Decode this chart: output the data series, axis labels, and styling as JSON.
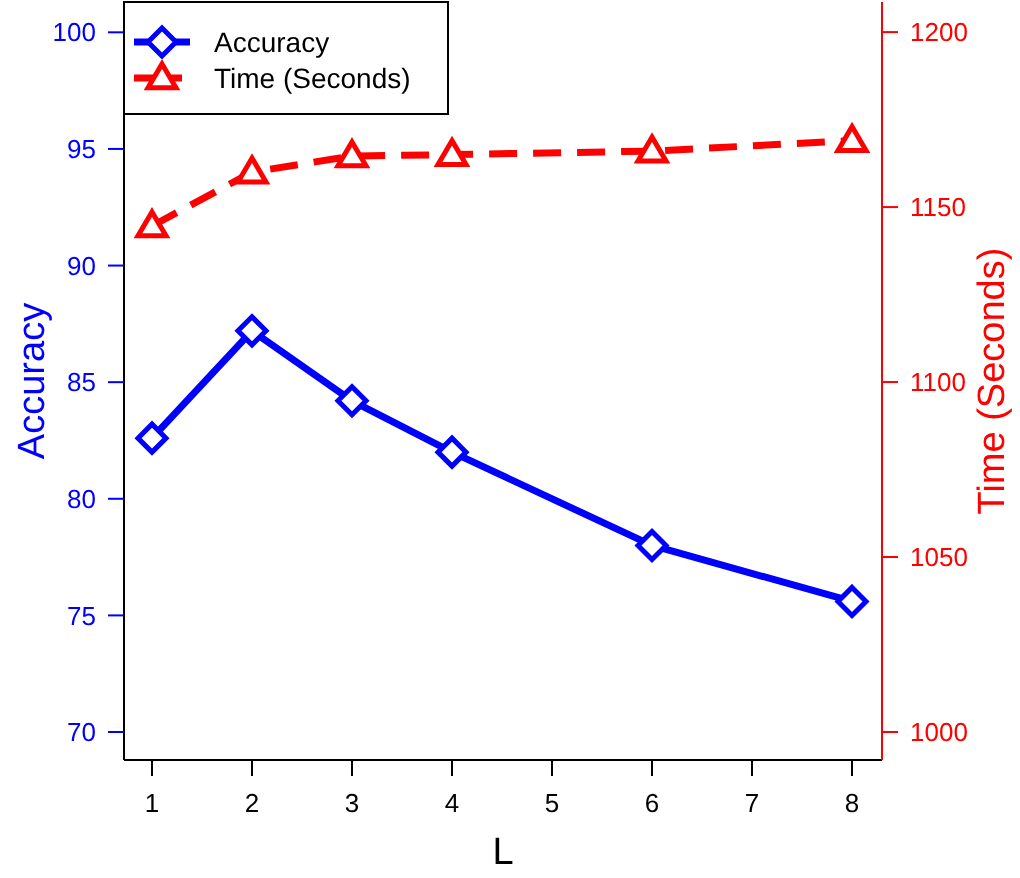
{
  "chart_data": {
    "type": "line",
    "xlabel": "L",
    "ylabel": "Accuracy",
    "y2label": "Time (Seconds)",
    "x": [
      1,
      2,
      3,
      4,
      6,
      8
    ],
    "xlim": [
      0.72,
      8.3
    ],
    "xticks": [
      1,
      2,
      3,
      4,
      5,
      6,
      7,
      8
    ],
    "ylim": [
      68.8,
      101.3
    ],
    "yticks": [
      70,
      75,
      80,
      85,
      90,
      95,
      100
    ],
    "y2lim": [
      992,
      1208.6
    ],
    "y2ticks": [
      1000,
      1050,
      1100,
      1150,
      1200
    ],
    "legend": "top left",
    "grid": false,
    "series": [
      {
        "name": "Accuracy",
        "color": "#0000ff",
        "values": [
          82.6,
          87.2,
          84.2,
          82.0,
          78.0,
          75.6
        ],
        "marker": "diamond",
        "line_style": "solid"
      },
      {
        "name": "Time (Seconds)",
        "color": "#ff0000",
        "values": [
          1144.6,
          1160,
          1164.6,
          1165,
          1166,
          1169
        ],
        "axis": "y2",
        "marker": "triangle",
        "line_style": "dashed"
      }
    ]
  }
}
